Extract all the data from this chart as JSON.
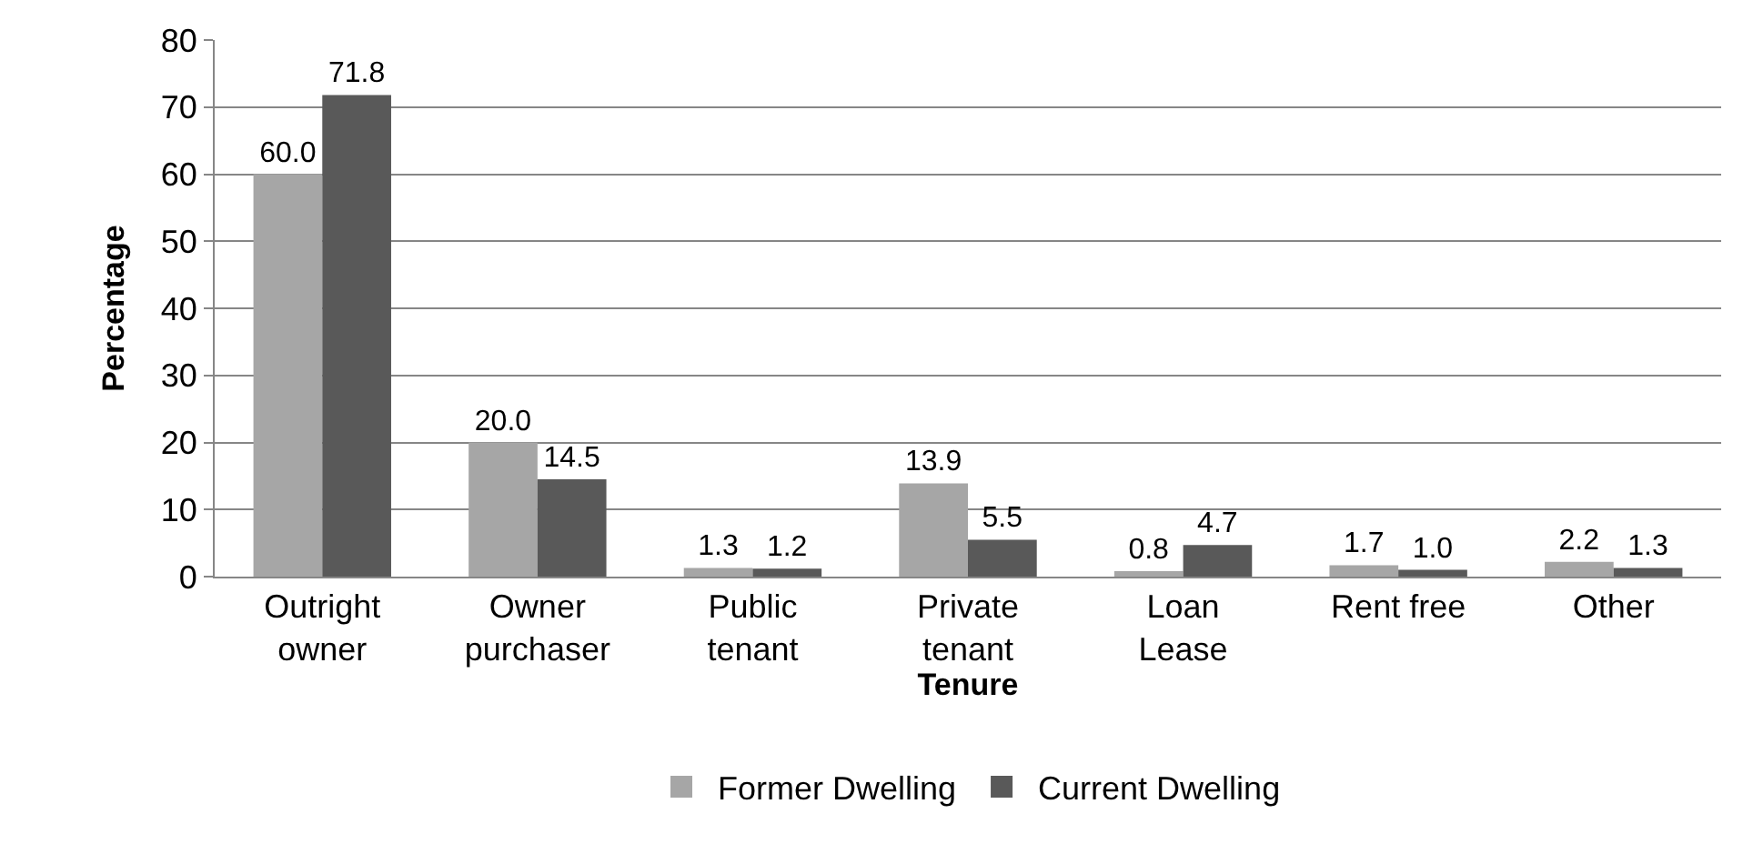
{
  "chart_data": {
    "type": "bar",
    "xlabel": "Tenure",
    "ylabel": "Percentage",
    "categories": [
      "Outright\nowner",
      "Owner\npurchaser",
      "Public\ntenant",
      "Private\ntenant",
      "Loan\nLease",
      "Rent free",
      "Other"
    ],
    "series": [
      {
        "name": "Former Dwelling",
        "color": "#a6a6a6",
        "values": [
          60.0,
          20.0,
          1.3,
          13.9,
          0.8,
          1.7,
          2.2
        ],
        "value_labels": [
          "60.0",
          "20.0",
          "1.3",
          "13.9",
          "0.8",
          "1.7",
          "2.2"
        ]
      },
      {
        "name": "Current Dwelling",
        "color": "#595959",
        "values": [
          71.8,
          14.5,
          1.2,
          5.5,
          4.7,
          1.0,
          1.3
        ],
        "value_labels": [
          "71.8",
          "14.5",
          "1.2",
          "5.5",
          "4.7",
          "1.0",
          "1.3"
        ]
      }
    ],
    "ylim": [
      0,
      80
    ],
    "yticks": [
      0,
      10,
      20,
      30,
      40,
      50,
      60,
      70,
      80
    ],
    "grid": "y",
    "legend": "bottom"
  }
}
